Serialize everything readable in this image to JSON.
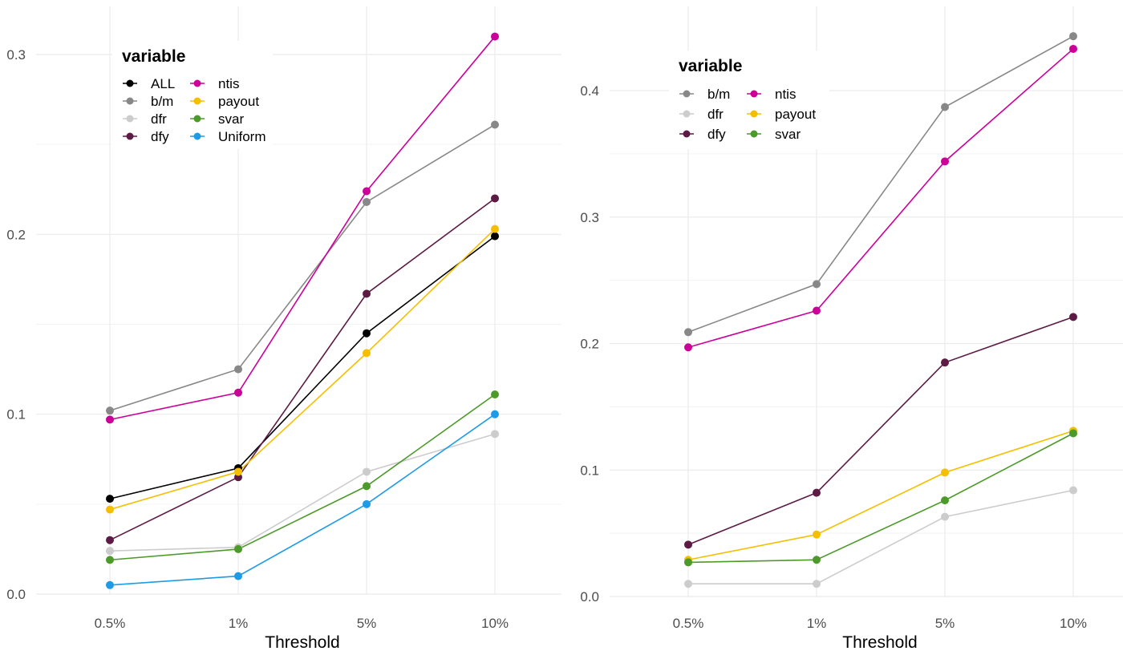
{
  "chart_data": [
    {
      "type": "line",
      "xlabel": "Threshold",
      "ylabel": "",
      "categories": [
        "0.5%",
        "1%",
        "5%",
        "10%"
      ],
      "ylim": [
        0,
        0.3
      ],
      "yticks": [
        "0.0",
        "0.1",
        "0.2",
        "0.3"
      ],
      "ytick_values": [
        0,
        0.1,
        0.2,
        0.3
      ],
      "grid": true,
      "legend": {
        "title": "variable",
        "placement": "top-left",
        "columns": 2,
        "items": [
          "ALL",
          "b/m",
          "dfr",
          "dfy",
          "ntis",
          "payout",
          "svar",
          "Uniform"
        ]
      },
      "series": [
        {
          "name": "ALL",
          "color": "#000000",
          "values": [
            0.053,
            0.07,
            0.145,
            0.199
          ]
        },
        {
          "name": "b/m",
          "color": "#888888",
          "values": [
            0.102,
            0.125,
            0.218,
            0.261
          ]
        },
        {
          "name": "dfr",
          "color": "#cccccc",
          "values": [
            0.024,
            0.026,
            0.068,
            0.089
          ]
        },
        {
          "name": "dfy",
          "color": "#5c1a44",
          "values": [
            0.03,
            0.065,
            0.167,
            0.22
          ]
        },
        {
          "name": "ntis",
          "color": "#cc0099",
          "values": [
            0.097,
            0.112,
            0.224,
            0.31
          ]
        },
        {
          "name": "payout",
          "color": "#f5bf00",
          "values": [
            0.047,
            0.068,
            0.134,
            0.203
          ]
        },
        {
          "name": "svar",
          "color": "#4c9a2a",
          "values": [
            0.019,
            0.025,
            0.06,
            0.111
          ]
        },
        {
          "name": "Uniform",
          "color": "#1e9be6",
          "values": [
            0.005,
            0.01,
            0.05,
            0.1
          ]
        }
      ]
    },
    {
      "type": "line",
      "xlabel": "Threshold",
      "ylabel": "",
      "categories": [
        "0.5%",
        "1%",
        "5%",
        "10%"
      ],
      "ylim": [
        0,
        0.4
      ],
      "yticks": [
        "0.0",
        "0.1",
        "0.2",
        "0.3",
        "0.4"
      ],
      "ytick_values": [
        0,
        0.1,
        0.2,
        0.3,
        0.4
      ],
      "grid": true,
      "legend": {
        "title": "variable",
        "placement": "top-left",
        "columns": 2,
        "items": [
          "b/m",
          "dfr",
          "dfy",
          "ntis",
          "payout",
          "svar"
        ]
      },
      "series": [
        {
          "name": "b/m",
          "color": "#888888",
          "values": [
            0.209,
            0.247,
            0.387,
            0.443
          ]
        },
        {
          "name": "dfr",
          "color": "#cccccc",
          "values": [
            0.01,
            0.01,
            0.063,
            0.084
          ]
        },
        {
          "name": "dfy",
          "color": "#5c1a44",
          "values": [
            0.041,
            0.082,
            0.185,
            0.221
          ]
        },
        {
          "name": "ntis",
          "color": "#cc0099",
          "values": [
            0.197,
            0.226,
            0.344,
            0.433
          ]
        },
        {
          "name": "payout",
          "color": "#f5bf00",
          "values": [
            0.029,
            0.049,
            0.098,
            0.131
          ]
        },
        {
          "name": "svar",
          "color": "#4c9a2a",
          "values": [
            0.027,
            0.029,
            0.076,
            0.129
          ]
        }
      ]
    }
  ]
}
